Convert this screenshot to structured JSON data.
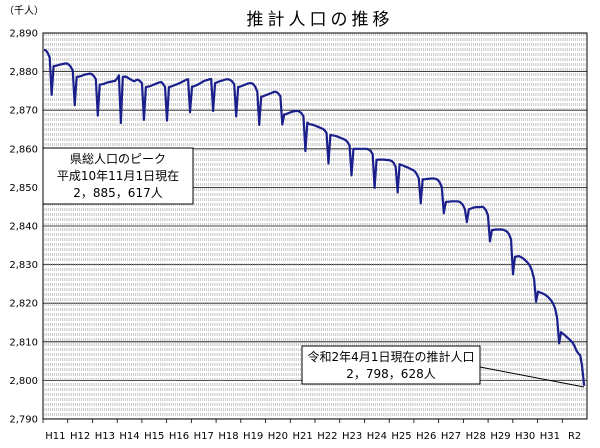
{
  "chart_data": {
    "type": "line",
    "title": "推計人口の推移",
    "unit_label": "（千人）",
    "ylim": [
      2790,
      2890
    ],
    "y_ticks": [
      "2,790",
      "2,800",
      "2,810",
      "2,820",
      "2,830",
      "2,840",
      "2,850",
      "2,860",
      "2,870",
      "2,880",
      "2,890"
    ],
    "y_tick_values": [
      2790,
      2800,
      2810,
      2820,
      2830,
      2840,
      2850,
      2860,
      2870,
      2880,
      2890
    ],
    "x_ticks": [
      "H11",
      "H12",
      "H13",
      "H14",
      "H15",
      "H16",
      "H17",
      "H18",
      "H19",
      "H20",
      "H21",
      "H22",
      "H23",
      "H24",
      "H25",
      "H26",
      "H27",
      "H28",
      "H29",
      "H30",
      "H31",
      "R2"
    ],
    "grid": true,
    "annotations": [
      {
        "lines": [
          "県総人口のピーク",
          "平成10年11月1日現在",
          "2，885，617人"
        ]
      },
      {
        "lines": [
          "令和2年4月1日現在の推計人口",
          "2，798，628人"
        ]
      }
    ],
    "series": [
      {
        "x_start": "1998-11",
        "x_end": "2020-04",
        "values": [
          2885.6,
          2885.5,
          2884.8,
          2883.6,
          2874.0,
          2881.4,
          2881.5,
          2881.6,
          2881.8,
          2881.9,
          2882.0,
          2882.1,
          2882.1,
          2881.8,
          2881.2,
          2880.2,
          2871.3,
          2878.6,
          2878.7,
          2878.8,
          2879.0,
          2879.2,
          2879.3,
          2879.4,
          2879.5,
          2879.3,
          2878.8,
          2878.0,
          2868.6,
          2876.6,
          2876.7,
          2876.8,
          2877.0,
          2877.2,
          2877.3,
          2877.4,
          2877.5,
          2877.6,
          2878.2,
          2879.0,
          2866.7,
          2878.6,
          2878.7,
          2878.6,
          2878.3,
          2878.0,
          2877.7,
          2877.5,
          2877.8,
          2877.9,
          2877.5,
          2877.0,
          2867.5,
          2876.0,
          2876.1,
          2876.2,
          2876.4,
          2876.6,
          2876.8,
          2877.0,
          2877.2,
          2877.3,
          2876.8,
          2876.0,
          2867.3,
          2876.0,
          2876.1,
          2876.3,
          2876.5,
          2876.7,
          2876.9,
          2877.1,
          2877.4,
          2877.6,
          2877.9,
          2878.0,
          2869.5,
          2876.1,
          2876.2,
          2876.4,
          2876.6,
          2876.9,
          2877.2,
          2877.5,
          2877.7,
          2877.8,
          2878.0,
          2878.1,
          2869.8,
          2877.0,
          2877.2,
          2877.4,
          2877.6,
          2877.7,
          2877.9,
          2878.0,
          2878.0,
          2877.8,
          2877.4,
          2876.7,
          2868.4,
          2876.0,
          2876.1,
          2876.3,
          2876.5,
          2876.7,
          2876.9,
          2877.0,
          2877.0,
          2876.7,
          2876.0,
          2874.8,
          2866.2,
          2873.5,
          2873.6,
          2873.8,
          2874.0,
          2874.2,
          2874.4,
          2874.6,
          2874.8,
          2874.7,
          2874.3,
          2873.6,
          2866.3,
          2868.9,
          2869.0,
          2869.2,
          2869.4,
          2869.6,
          2869.7,
          2869.8,
          2869.8,
          2869.6,
          2869.2,
          2868.4,
          2859.4,
          2866.8,
          2866.4,
          2866.3,
          2866.2,
          2866.0,
          2865.8,
          2865.6,
          2865.4,
          2865.2,
          2864.8,
          2864.1,
          2856.2,
          2863.6,
          2863.5,
          2863.4,
          2863.3,
          2863.1,
          2862.9,
          2862.7,
          2862.5,
          2862.2,
          2861.7,
          2860.8,
          2853.1,
          2860.0,
          2860.0,
          2860.0,
          2860.0,
          2860.0,
          2860.0,
          2860.0,
          2860.0,
          2859.8,
          2859.4,
          2858.6,
          2849.9,
          2857.1,
          2857.2,
          2857.2,
          2857.2,
          2857.2,
          2857.1,
          2857.1,
          2857.0,
          2856.8,
          2856.3,
          2855.2,
          2848.7,
          2856.0,
          2855.8,
          2855.6,
          2855.4,
          2855.2,
          2855.0,
          2854.7,
          2854.5,
          2854.1,
          2853.4,
          2852.3,
          2845.9,
          2852.1,
          2852.1,
          2852.2,
          2852.2,
          2852.3,
          2852.3,
          2852.3,
          2852.2,
          2851.9,
          2851.2,
          2850.0,
          2843.3,
          2846.2,
          2846.3,
          2846.3,
          2846.4,
          2846.4,
          2846.4,
          2846.4,
          2846.3,
          2846.0,
          2845.4,
          2844.3,
          2841.0,
          2844.3,
          2844.5,
          2844.7,
          2844.8,
          2844.9,
          2844.9,
          2844.9,
          2845.0,
          2844.7,
          2844.0,
          2842.7,
          2836.0,
          2838.9,
          2839.0,
          2839.1,
          2839.1,
          2839.1,
          2839.1,
          2839.0,
          2838.8,
          2838.5,
          2837.8,
          2836.5,
          2827.5,
          2832.0,
          2832.1,
          2832.2,
          2832.0,
          2831.7,
          2831.3,
          2830.8,
          2830.3,
          2829.5,
          2828.2,
          2826.2,
          2820.4,
          2823.0,
          2822.8,
          2822.6,
          2822.4,
          2822.1,
          2821.7,
          2821.2,
          2820.6,
          2819.8,
          2818.5,
          2816.0,
          2809.6,
          2812.5,
          2812.1,
          2811.7,
          2811.2,
          2810.8,
          2810.3,
          2809.8,
          2808.9,
          2807.7,
          2807.0,
          2806.5,
          2803.5,
          2798.6
        ]
      }
    ]
  }
}
